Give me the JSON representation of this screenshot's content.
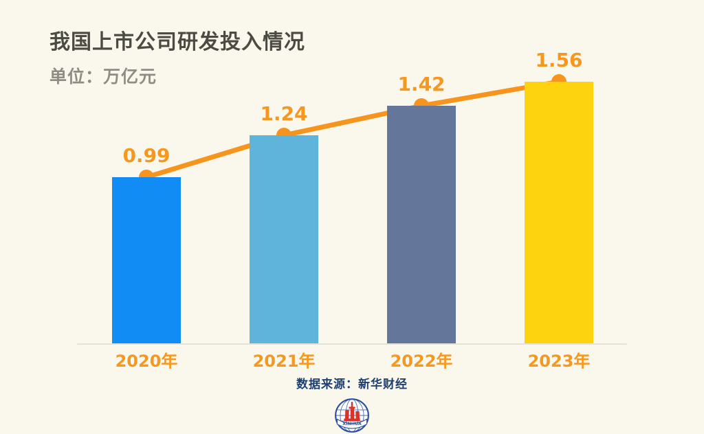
{
  "page": {
    "title": "我国上市公司研发投入情况",
    "subtitle": "单位：万亿元",
    "source": "数据来源：新华财经",
    "logo_text": "XINHUA"
  },
  "colors": {
    "background": "#FAF7EC",
    "title": "#4B4A43",
    "subtitle": "#8E8D85",
    "accent_orange": "#F6981F",
    "axis_line": "#E5E2D7",
    "source_text": "#1D3F72",
    "logo_blue": "#2B4F9E",
    "logo_red": "#D6342A"
  },
  "chart_data": {
    "type": "bar",
    "title": "我国上市公司研发投入情况",
    "unit": "万亿元",
    "categories": [
      "2020年",
      "2021年",
      "2022年",
      "2023年"
    ],
    "values": [
      0.99,
      1.24,
      1.42,
      1.56
    ],
    "value_labels": [
      "0.99",
      "1.24",
      "1.42",
      "1.56"
    ],
    "bar_colors": [
      "#128CF5",
      "#5FB4DB",
      "#64779B",
      "#FDD30F"
    ],
    "overlay_line": {
      "type": "line",
      "values": [
        0.99,
        1.24,
        1.42,
        1.56
      ],
      "color": "#F6941E",
      "marker": "circle"
    },
    "xlabel": "",
    "ylabel": "万亿元",
    "ylim": [
      0,
      2.05
    ],
    "grid": false,
    "legend": false,
    "source": "数据来源：新华财经"
  }
}
